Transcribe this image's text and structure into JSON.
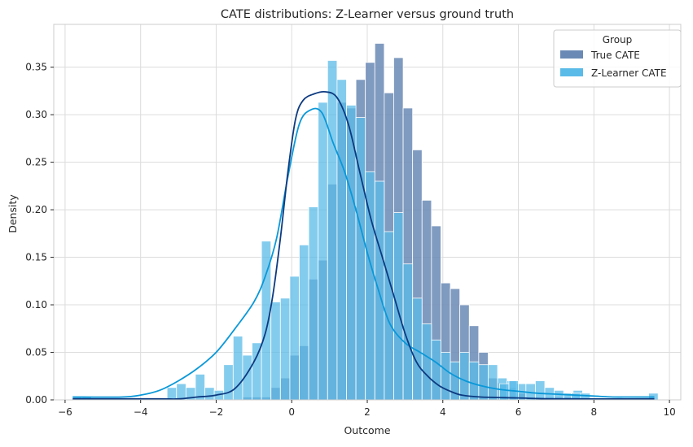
{
  "chart_data": {
    "type": "histogram",
    "title": "CATE distributions: Z-Learner versus ground truth",
    "xlabel": "Outcome",
    "ylabel": "Density",
    "xlim": [
      -6.3,
      10.3
    ],
    "ylim": [
      0,
      0.395
    ],
    "xticks": [
      -6,
      -4,
      -2,
      0,
      2,
      4,
      6,
      8,
      10
    ],
    "yticks": [
      0.0,
      0.05,
      0.1,
      0.15,
      0.2,
      0.25,
      0.3,
      0.35
    ],
    "grid": true,
    "legend": {
      "title": "Group",
      "placement": "top-right"
    },
    "bin_start": -3.3,
    "bin_width": 0.25,
    "series": [
      {
        "name": "True CATE",
        "color": "#6a8ab5",
        "kde_color": "#0d3a80",
        "bar_values": [
          0,
          0,
          0,
          0,
          0,
          0,
          0,
          0,
          0.003,
          0.003,
          0.003,
          0.013,
          0.023,
          0.047,
          0.057,
          0.127,
          0.147,
          0.227,
          0.313,
          0.307,
          0.337,
          0.355,
          0.375,
          0.323,
          0.36,
          0.307,
          0.263,
          0.21,
          0.183,
          0.123,
          0.117,
          0.1,
          0.078,
          0.05,
          0.023,
          0.018,
          0.013,
          0.007,
          0.003,
          0.003,
          0.003,
          0.003,
          0.003,
          0
        ],
        "kde_x": [
          -5.8,
          -3.5,
          -3.0,
          -2.5,
          -2.0,
          -1.5,
          -1.0,
          -0.7,
          -0.5,
          -0.3,
          -0.1,
          0.1,
          0.3,
          0.6,
          0.9,
          1.2,
          1.5,
          1.8,
          2.1,
          2.4,
          2.7,
          3.0,
          3.3,
          3.6,
          3.9,
          4.2,
          4.5,
          5.0,
          6.0,
          7.0,
          9.6
        ],
        "kde_y": [
          0.001,
          0.001,
          0.001,
          0.003,
          0.005,
          0.012,
          0.04,
          0.07,
          0.11,
          0.17,
          0.24,
          0.295,
          0.315,
          0.322,
          0.324,
          0.318,
          0.29,
          0.24,
          0.19,
          0.15,
          0.11,
          0.07,
          0.04,
          0.025,
          0.015,
          0.009,
          0.005,
          0.003,
          0.002,
          0.001,
          0.001
        ]
      },
      {
        "name": "Z-Learner CATE",
        "color": "#5bbbe8",
        "kde_color": "#0a98d8",
        "bar_values": [
          0.013,
          0.017,
          0.013,
          0.027,
          0.013,
          0.01,
          0.037,
          0.067,
          0.047,
          0.06,
          0.167,
          0.103,
          0.107,
          0.13,
          0.163,
          0.203,
          0.313,
          0.357,
          0.337,
          0.31,
          0.297,
          0.24,
          0.23,
          0.177,
          0.197,
          0.143,
          0.107,
          0.08,
          0.063,
          0.05,
          0.04,
          0.05,
          0.04,
          0.037,
          0.037,
          0.023,
          0.02,
          0.017,
          0.017,
          0.02,
          0.013,
          0.01,
          0.007,
          0.01
        ],
        "kde_x": [
          -5.8,
          -4.5,
          -4.0,
          -3.5,
          -3.0,
          -2.5,
          -2.0,
          -1.5,
          -1.0,
          -0.7,
          -0.4,
          -0.1,
          0.2,
          0.5,
          0.8,
          1.1,
          1.4,
          1.7,
          2.0,
          2.3,
          2.6,
          3.0,
          3.4,
          3.8,
          4.2,
          4.6,
          5.0,
          5.5,
          6.0,
          6.5,
          7.0,
          7.5,
          8.0,
          8.5,
          9.0,
          9.6
        ],
        "kde_y": [
          0.003,
          0.003,
          0.005,
          0.01,
          0.02,
          0.033,
          0.05,
          0.075,
          0.103,
          0.13,
          0.17,
          0.235,
          0.29,
          0.305,
          0.302,
          0.27,
          0.24,
          0.2,
          0.155,
          0.115,
          0.08,
          0.06,
          0.05,
          0.04,
          0.028,
          0.02,
          0.015,
          0.011,
          0.009,
          0.007,
          0.006,
          0.005,
          0.004,
          0.003,
          0.003,
          0.003
        ]
      }
    ],
    "extra_bars": [
      {
        "series": 1,
        "x": 5.5,
        "value": 0.017
      },
      {
        "series": 1,
        "x": 5.75,
        "value": 0.02
      },
      {
        "series": 1,
        "x": 7.4,
        "value": 0.007
      },
      {
        "series": 1,
        "x": 7.65,
        "value": 0.007
      },
      {
        "series": 1,
        "x": 9.45,
        "value": 0.007
      },
      {
        "series": 1,
        "x": -5.8,
        "value": 0.003
      },
      {
        "series": 1,
        "x": -5.55,
        "value": 0.003
      }
    ]
  }
}
